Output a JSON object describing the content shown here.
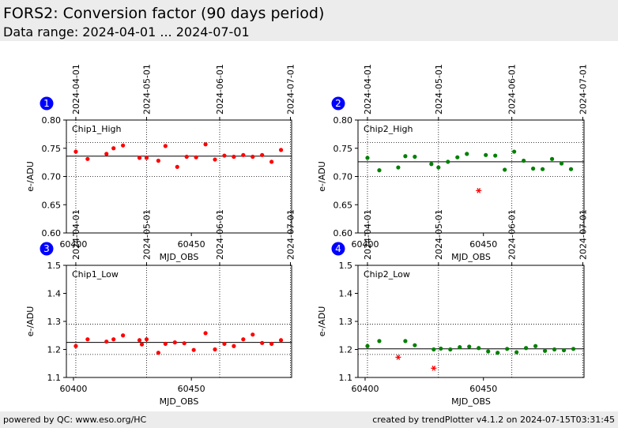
{
  "header": {
    "title": "FORS2: Conversion factor (90 days period)",
    "subtitle": "Data range: 2024-04-01 ... 2024-07-01"
  },
  "footer": {
    "left": "powered by QC: www.eso.org/HC",
    "right": "created by trendPlotter v4.1.2 on 2024-07-15T03:31:45"
  },
  "colors": {
    "chip1": "#ff0000",
    "chip2": "#008000",
    "outlier": "#ff0000",
    "badge": "#0000ff"
  },
  "date_ticks": [
    {
      "label": "2024-04-01",
      "mjd": 60401
    },
    {
      "label": "2024-05-01",
      "mjd": 60431
    },
    {
      "label": "2024-06-01",
      "mjd": 60462
    },
    {
      "label": "2024-07-01",
      "mjd": 60492
    }
  ],
  "chart_data": [
    {
      "type": "scatter",
      "badge": "1",
      "label": "Chip1_High",
      "xlabel": "MJD_OBS",
      "ylabel": "e-/ADU",
      "xlim": [
        60397,
        60492.5
      ],
      "ylim": [
        0.6,
        0.8
      ],
      "xticks": [
        {
          "value": 60400,
          "label": "60400"
        },
        {
          "value": 60450,
          "label": "60450"
        }
      ],
      "yticks": [
        {
          "value": 0.6,
          "label": "0.60"
        },
        {
          "value": 0.65,
          "label": "0.65"
        },
        {
          "value": 0.7,
          "label": "0.70"
        },
        {
          "value": 0.75,
          "label": "0.75"
        },
        {
          "value": 0.8,
          "label": "0.80"
        }
      ],
      "mean": 0.736,
      "sigma_lines": [
        0.7,
        0.76
      ],
      "color_key": "chip1",
      "points": [
        [
          60401,
          0.744
        ],
        [
          60406,
          0.731
        ],
        [
          60414,
          0.74
        ],
        [
          60417,
          0.75
        ],
        [
          60421,
          0.755
        ],
        [
          60428,
          0.733
        ],
        [
          60431,
          0.733
        ],
        [
          60436,
          0.728
        ],
        [
          60439,
          0.754
        ],
        [
          60444,
          0.717
        ],
        [
          60448,
          0.735
        ],
        [
          60452,
          0.734
        ],
        [
          60456,
          0.757
        ],
        [
          60460,
          0.73
        ],
        [
          60464,
          0.737
        ],
        [
          60468,
          0.735
        ],
        [
          60472,
          0.738
        ],
        [
          60476,
          0.735
        ],
        [
          60480,
          0.738
        ],
        [
          60484,
          0.726
        ],
        [
          60488,
          0.747
        ]
      ],
      "outliers": []
    },
    {
      "type": "scatter",
      "badge": "2",
      "label": "Chip2_High",
      "xlabel": "MJD_OBS",
      "ylabel": "e-/ADU",
      "xlim": [
        60397,
        60492.5
      ],
      "ylim": [
        0.6,
        0.8
      ],
      "xticks": [
        {
          "value": 60400,
          "label": "60400"
        },
        {
          "value": 60450,
          "label": "60450"
        }
      ],
      "yticks": [
        {
          "value": 0.6,
          "label": "0.60"
        },
        {
          "value": 0.65,
          "label": "0.65"
        },
        {
          "value": 0.7,
          "label": "0.70"
        },
        {
          "value": 0.75,
          "label": "0.75"
        },
        {
          "value": 0.8,
          "label": "0.80"
        }
      ],
      "mean": 0.726,
      "sigma_lines": [
        0.7,
        0.76
      ],
      "color_key": "chip2",
      "points": [
        [
          60401,
          0.733
        ],
        [
          60406,
          0.711
        ],
        [
          60414,
          0.716
        ],
        [
          60417,
          0.736
        ],
        [
          60421,
          0.735
        ],
        [
          60428,
          0.722
        ],
        [
          60431,
          0.716
        ],
        [
          60435,
          0.726
        ],
        [
          60439,
          0.734
        ],
        [
          60443,
          0.74
        ],
        [
          60451,
          0.738
        ],
        [
          60455,
          0.737
        ],
        [
          60459,
          0.712
        ],
        [
          60463,
          0.744
        ],
        [
          60467,
          0.728
        ],
        [
          60471,
          0.714
        ],
        [
          60475,
          0.713
        ],
        [
          60479,
          0.731
        ],
        [
          60483,
          0.723
        ],
        [
          60487,
          0.713
        ]
      ],
      "outliers": [
        [
          60448,
          0.675
        ]
      ]
    },
    {
      "type": "scatter",
      "badge": "3",
      "label": "Chip1_Low",
      "xlabel": "MJD_OBS",
      "ylabel": "e-/ADU",
      "xlim": [
        60397,
        60492.5
      ],
      "ylim": [
        1.1,
        1.5
      ],
      "xticks": [
        {
          "value": 60400,
          "label": "60400"
        },
        {
          "value": 60450,
          "label": "60450"
        }
      ],
      "yticks": [
        {
          "value": 1.1,
          "label": "1.1"
        },
        {
          "value": 1.2,
          "label": "1.2"
        },
        {
          "value": 1.3,
          "label": "1.3"
        },
        {
          "value": 1.4,
          "label": "1.4"
        },
        {
          "value": 1.5,
          "label": "1.5"
        }
      ],
      "mean": 1.225,
      "sigma_lines": [
        1.182,
        1.29
      ],
      "color_key": "chip1",
      "points": [
        [
          60401,
          1.212
        ],
        [
          60406,
          1.236
        ],
        [
          60414,
          1.228
        ],
        [
          60417,
          1.236
        ],
        [
          60421,
          1.25
        ],
        [
          60428,
          1.233
        ],
        [
          60429,
          1.218
        ],
        [
          60431,
          1.236
        ],
        [
          60436,
          1.188
        ],
        [
          60439,
          1.22
        ],
        [
          60443,
          1.225
        ],
        [
          60447,
          1.222
        ],
        [
          60451,
          1.198
        ],
        [
          60456,
          1.258
        ],
        [
          60460,
          1.2
        ],
        [
          60464,
          1.22
        ],
        [
          60468,
          1.212
        ],
        [
          60472,
          1.236
        ],
        [
          60476,
          1.253
        ],
        [
          60480,
          1.223
        ],
        [
          60484,
          1.22
        ],
        [
          60488,
          1.233
        ]
      ],
      "outliers": []
    },
    {
      "type": "scatter",
      "badge": "4",
      "label": "Chip2_Low",
      "xlabel": "MJD_OBS",
      "ylabel": "e-/ADU",
      "xlim": [
        60397,
        60492.5
      ],
      "ylim": [
        1.1,
        1.5
      ],
      "xticks": [
        {
          "value": 60400,
          "label": "60400"
        },
        {
          "value": 60450,
          "label": "60450"
        }
      ],
      "yticks": [
        {
          "value": 1.1,
          "label": "1.1"
        },
        {
          "value": 1.2,
          "label": "1.2"
        },
        {
          "value": 1.3,
          "label": "1.3"
        },
        {
          "value": 1.4,
          "label": "1.4"
        },
        {
          "value": 1.5,
          "label": "1.5"
        }
      ],
      "mean": 1.202,
      "sigma_lines": [
        1.182,
        1.29
      ],
      "color_key": "chip2",
      "points": [
        [
          60401,
          1.212
        ],
        [
          60406,
          1.23
        ],
        [
          60417,
          1.23
        ],
        [
          60421,
          1.215
        ],
        [
          60429,
          1.2
        ],
        [
          60432,
          1.203
        ],
        [
          60436,
          1.2
        ],
        [
          60440,
          1.208
        ],
        [
          60444,
          1.21
        ],
        [
          60448,
          1.205
        ],
        [
          60452,
          1.193
        ],
        [
          60456,
          1.188
        ],
        [
          60460,
          1.202
        ],
        [
          60464,
          1.19
        ],
        [
          60468,
          1.205
        ],
        [
          60472,
          1.212
        ],
        [
          60476,
          1.195
        ],
        [
          60480,
          1.2
        ],
        [
          60484,
          1.197
        ],
        [
          60488,
          1.202
        ]
      ],
      "outliers": [
        [
          60414,
          1.172
        ],
        [
          60429,
          1.133
        ]
      ]
    }
  ]
}
